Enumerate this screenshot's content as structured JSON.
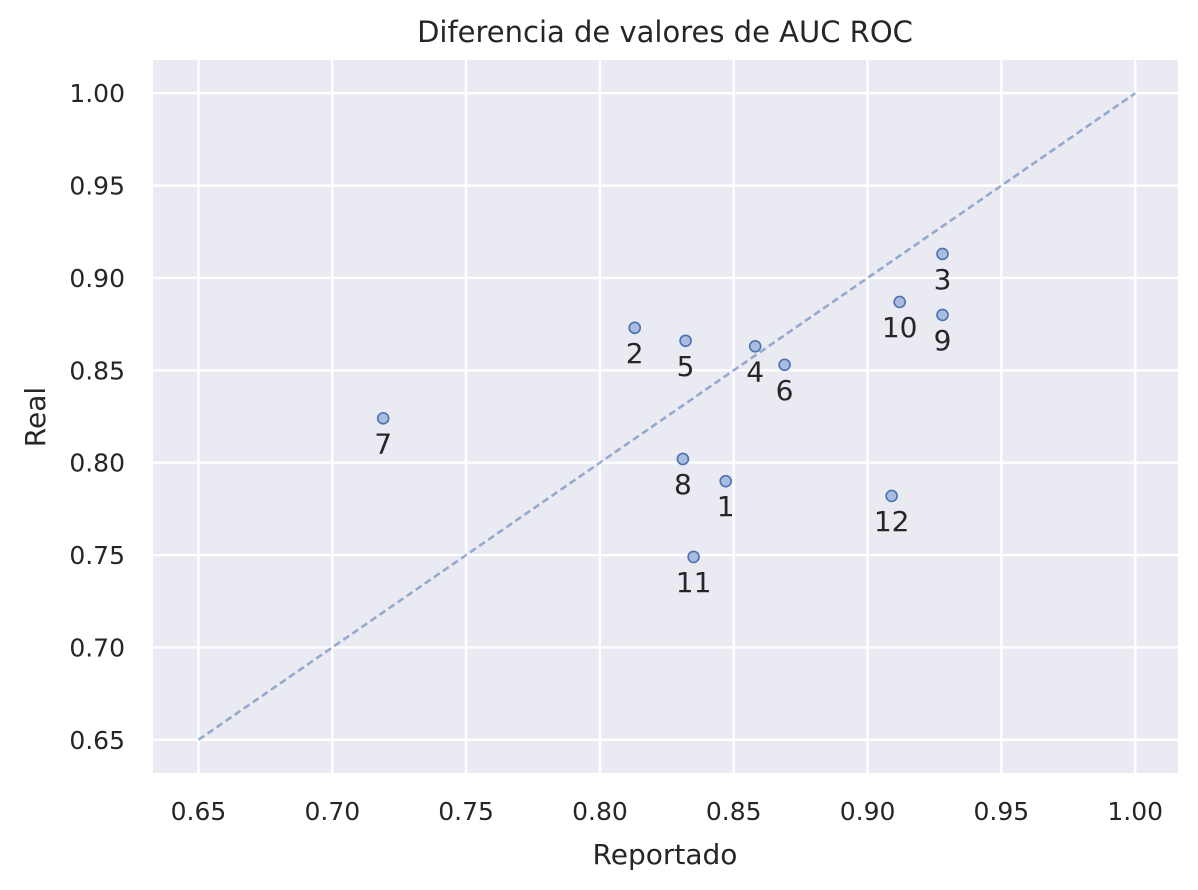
{
  "chart_data": {
    "type": "scatter",
    "title": "Diferencia de valores de AUC ROC",
    "xlabel": "Reportado",
    "ylabel": "Real",
    "xlim": [
      0.633,
      1.016
    ],
    "ylim": [
      0.632,
      1.018
    ],
    "xticks": [
      "0.65",
      "0.70",
      "0.75",
      "0.80",
      "0.85",
      "0.90",
      "0.95",
      "1.00"
    ],
    "yticks": [
      "0.65",
      "0.70",
      "0.75",
      "0.80",
      "0.85",
      "0.90",
      "0.95",
      "1.00"
    ],
    "grid": true,
    "reference_line": {
      "x": [
        0.65,
        1.0
      ],
      "y": [
        0.65,
        1.0
      ],
      "style": "dashed"
    },
    "points": [
      {
        "label": "1",
        "x": 0.847,
        "y": 0.79
      },
      {
        "label": "2",
        "x": 0.813,
        "y": 0.873
      },
      {
        "label": "3",
        "x": 0.928,
        "y": 0.913
      },
      {
        "label": "4",
        "x": 0.858,
        "y": 0.863
      },
      {
        "label": "5",
        "x": 0.832,
        "y": 0.866
      },
      {
        "label": "6",
        "x": 0.869,
        "y": 0.853
      },
      {
        "label": "7",
        "x": 0.719,
        "y": 0.824
      },
      {
        "label": "8",
        "x": 0.831,
        "y": 0.802
      },
      {
        "label": "9",
        "x": 0.928,
        "y": 0.88
      },
      {
        "label": "10",
        "x": 0.912,
        "y": 0.887
      },
      {
        "label": "11",
        "x": 0.835,
        "y": 0.749
      },
      {
        "label": "12",
        "x": 0.909,
        "y": 0.782
      }
    ],
    "colors": {
      "background": "#eaeaf2",
      "marker_fill": "#a9bde0",
      "marker_edge": "#4c72b0",
      "line": "#4c72b0"
    }
  }
}
